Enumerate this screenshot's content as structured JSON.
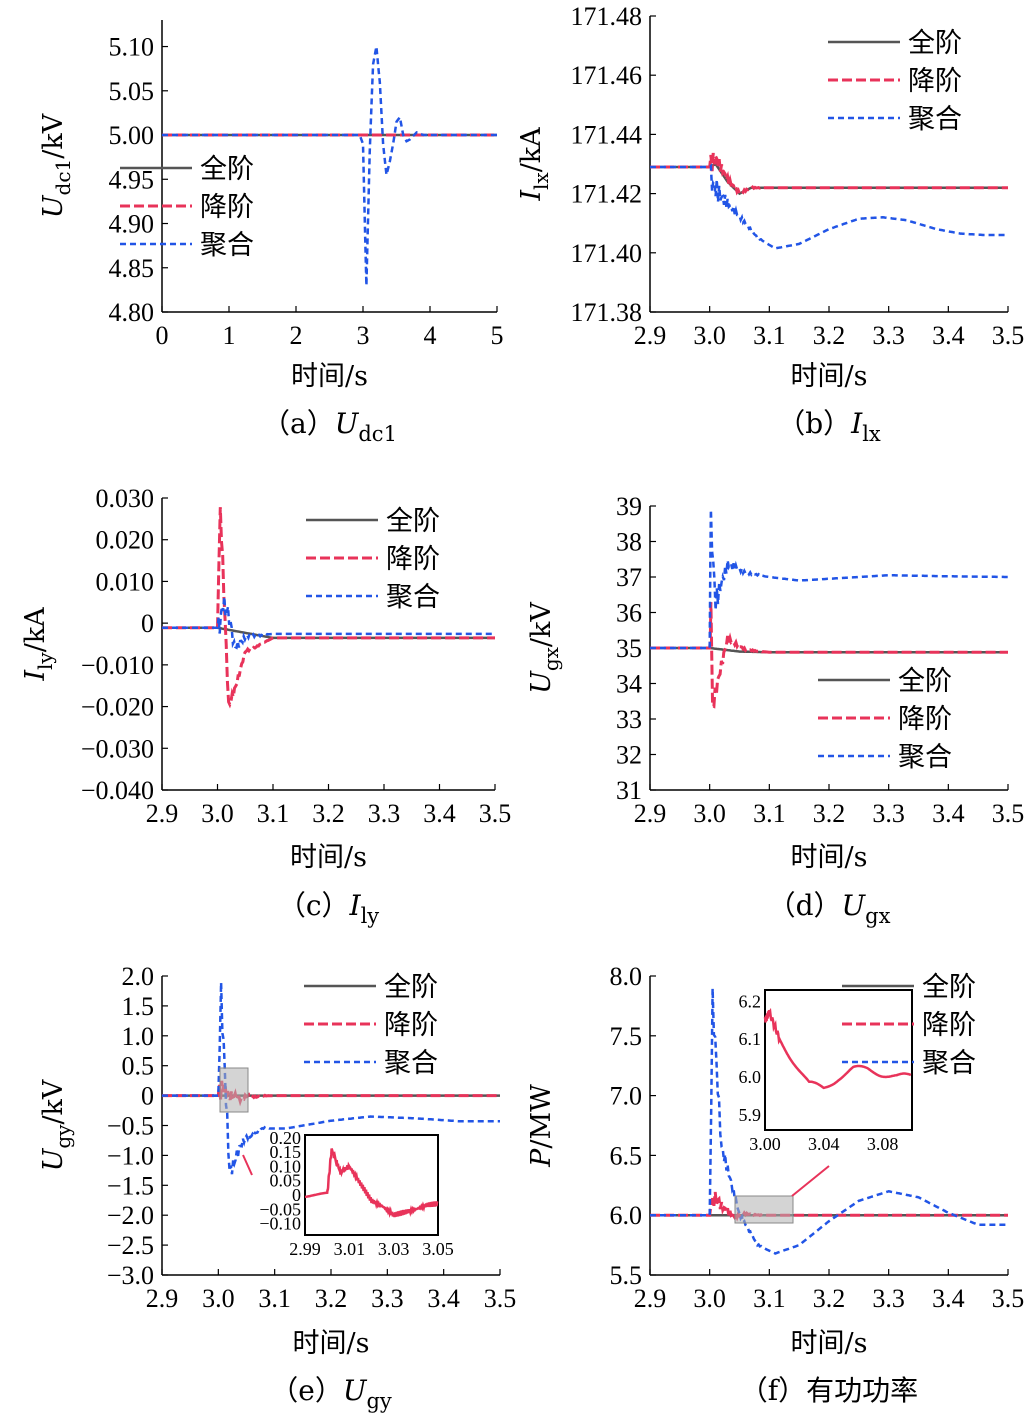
{
  "figure": {
    "colors": {
      "full": "#555555",
      "reduced": "#e8335a",
      "aggregate": "#2255e6"
    }
  },
  "legend_labels": [
    "全阶",
    "降阶",
    "聚合"
  ],
  "chart_data": [
    {
      "id": "a",
      "type": "line",
      "caption": {
        "prefix": "（a）",
        "sym": "U",
        "sub": "dc1"
      },
      "ylabel": {
        "sym": "U",
        "sub": "dc1",
        "unit": "/kV"
      },
      "xlabel": "时间/s",
      "xlim": [
        0,
        5
      ],
      "ylim": [
        4.8,
        5.13
      ],
      "xticks": [
        "0",
        "1",
        "2",
        "3",
        "4",
        "5"
      ],
      "yticks": [
        "4.80",
        "4.85",
        "4.90",
        "4.95",
        "5.00",
        "5.05",
        "5.10"
      ],
      "legend_position": "center-left",
      "series": [
        {
          "name": "全阶",
          "x": [
            0,
            5
          ],
          "y": [
            5.0,
            5.0
          ]
        },
        {
          "name": "降阶",
          "x": [
            0,
            5
          ],
          "y": [
            5.0,
            5.0
          ]
        },
        {
          "name": "聚合",
          "x": [
            0,
            2.95,
            3.0,
            3.05,
            3.1,
            3.15,
            3.2,
            3.25,
            3.3,
            3.35,
            3.4,
            3.45,
            3.5,
            3.55,
            3.6,
            3.65,
            3.7,
            3.8,
            3.9,
            4.0,
            4.2,
            5.0
          ],
          "y": [
            5.0,
            5.0,
            4.99,
            4.83,
            4.98,
            5.08,
            5.1,
            5.06,
            4.99,
            4.955,
            4.97,
            4.99,
            5.015,
            5.02,
            5.0,
            4.993,
            4.995,
            5.003,
            5.0,
            5.0,
            5.0,
            5.0
          ]
        }
      ]
    },
    {
      "id": "b",
      "type": "line",
      "caption": {
        "prefix": "（b）",
        "sym": "I",
        "sub": "lx"
      },
      "ylabel": {
        "sym": "I",
        "sub": "lx",
        "unit": "/kA"
      },
      "xlabel": "时间/s",
      "xlim": [
        2.9,
        3.5
      ],
      "ylim": [
        171.38,
        171.48
      ],
      "xticks": [
        "2.9",
        "3.0",
        "3.1",
        "3.2",
        "3.3",
        "3.4",
        "3.5"
      ],
      "yticks": [
        "171.38",
        "171.40",
        "171.42",
        "171.44",
        "171.46",
        "171.48"
      ],
      "legend_position": "top-right",
      "series": [
        {
          "name": "全阶",
          "x": [
            2.9,
            3.0,
            3.01,
            3.03,
            3.05,
            3.07,
            3.1,
            3.5
          ],
          "y": [
            171.429,
            171.429,
            171.43,
            171.424,
            171.42,
            171.422,
            171.422,
            171.422
          ]
        },
        {
          "name": "降阶",
          "x": [
            2.9,
            3.0,
            3.01,
            3.03,
            3.05,
            3.07,
            3.1,
            3.5
          ],
          "y": [
            171.429,
            171.429,
            171.431,
            171.424,
            171.42,
            171.422,
            171.422,
            171.422
          ]
        },
        {
          "name": "聚合",
          "x": [
            2.9,
            3.0,
            3.02,
            3.05,
            3.08,
            3.11,
            3.15,
            3.2,
            3.25,
            3.29,
            3.33,
            3.38,
            3.42,
            3.46,
            3.5
          ],
          "y": [
            171.429,
            171.429,
            171.42,
            171.412,
            171.405,
            171.4015,
            171.403,
            171.408,
            171.4115,
            171.412,
            171.411,
            171.408,
            171.4065,
            171.406,
            171.406
          ]
        }
      ]
    },
    {
      "id": "c",
      "type": "line",
      "caption": {
        "prefix": "（c）",
        "sym": "I",
        "sub": "ly"
      },
      "ylabel": {
        "sym": "I",
        "sub": "ly",
        "unit": "/kA"
      },
      "xlabel": "时间/s",
      "xlim": [
        2.9,
        3.5
      ],
      "ylim": [
        -0.04,
        0.032
      ],
      "xticks": [
        "2.9",
        "3.0",
        "3.1",
        "3.2",
        "3.3",
        "3.4",
        "3.5"
      ],
      "yticks": [
        "−0.040",
        "−0.030",
        "−0.020",
        "−0.010",
        "0",
        "0.010",
        "0.020",
        "0.030"
      ],
      "legend_position": "top-right",
      "series": [
        {
          "name": "全阶",
          "x": [
            2.9,
            3.0,
            3.1,
            3.2,
            3.5
          ],
          "y": [
            0,
            0,
            -0.0025,
            -0.0025,
            -0.0025
          ]
        },
        {
          "name": "降阶",
          "x": [
            2.9,
            3.0,
            3.005,
            3.02,
            3.05,
            3.1,
            3.5
          ],
          "y": [
            0,
            0,
            0.03,
            -0.02,
            -0.006,
            -0.0025,
            -0.0025
          ]
        },
        {
          "name": "聚合",
          "x": [
            2.9,
            3.0,
            3.01,
            3.03,
            3.06,
            3.1,
            3.5
          ],
          "y": [
            0,
            0,
            0.008,
            -0.004,
            -0.002,
            -0.0015,
            -0.0015
          ]
        }
      ]
    },
    {
      "id": "d",
      "type": "line",
      "caption": {
        "prefix": "（d）",
        "sym": "U",
        "sub": "gx"
      },
      "ylabel": {
        "sym": "U",
        "sub": "gx",
        "unit": "/kV"
      },
      "xlabel": "时间/s",
      "xlim": [
        2.9,
        3.5
      ],
      "ylim": [
        31,
        39
      ],
      "xticks": [
        "2.9",
        "3.0",
        "3.1",
        "3.2",
        "3.3",
        "3.4",
        "3.5"
      ],
      "yticks": [
        "31",
        "32",
        "33",
        "34",
        "35",
        "36",
        "37",
        "38",
        "39"
      ],
      "legend_position": "bottom-right",
      "series": [
        {
          "name": "全阶",
          "x": [
            2.9,
            3.0,
            3.05,
            3.1,
            3.5
          ],
          "y": [
            35.0,
            35.0,
            34.9,
            34.88,
            34.88
          ]
        },
        {
          "name": "降阶",
          "x": [
            2.9,
            3.0,
            3.002,
            3.005,
            3.03,
            3.06,
            3.1,
            3.5
          ],
          "y": [
            35.0,
            35.0,
            36.0,
            33.4,
            35.2,
            34.95,
            34.88,
            34.88
          ]
        },
        {
          "name": "聚合",
          "x": [
            2.9,
            3.0,
            3.002,
            3.01,
            3.03,
            3.06,
            3.1,
            3.15,
            3.2,
            3.3,
            3.4,
            3.5
          ],
          "y": [
            35.0,
            35.0,
            38.8,
            36.5,
            37.4,
            37.1,
            37.0,
            36.9,
            36.95,
            37.05,
            37.02,
            37.0
          ]
        }
      ]
    },
    {
      "id": "e",
      "type": "line",
      "caption": {
        "prefix": "（e）",
        "sym": "U",
        "sub": "gy"
      },
      "ylabel": {
        "sym": "U",
        "sub": "gy",
        "unit": "/kV"
      },
      "xlabel": "时间/s",
      "xlim": [
        2.9,
        3.5
      ],
      "ylim": [
        -3.0,
        2.0
      ],
      "xticks": [
        "2.9",
        "3.0",
        "3.1",
        "3.2",
        "3.3",
        "3.4",
        "3.5"
      ],
      "yticks": [
        "−3.0",
        "−2.5",
        "−2.0",
        "−1.5",
        "−1.0",
        "−0.5",
        "0",
        "0.5",
        "1.0",
        "1.5",
        "2.0"
      ],
      "legend_position": "top-right",
      "series": [
        {
          "name": "全阶",
          "x": [
            2.9,
            3.0,
            3.5
          ],
          "y": [
            0,
            0,
            0
          ]
        },
        {
          "name": "降阶",
          "x": [
            2.9,
            3.0,
            3.01,
            3.03,
            3.05,
            3.1,
            3.5
          ],
          "y": [
            0,
            0,
            0.12,
            -0.05,
            -0.02,
            0,
            0
          ]
        },
        {
          "name": "聚合",
          "x": [
            2.9,
            3.0,
            3.005,
            3.02,
            3.05,
            3.08,
            3.12,
            3.2,
            3.27,
            3.35,
            3.43,
            3.5
          ],
          "y": [
            0,
            0,
            1.5,
            -1.2,
            -0.7,
            -0.55,
            -0.55,
            -0.42,
            -0.35,
            -0.38,
            -0.43,
            -0.43
          ]
        }
      ],
      "inset": {
        "xlim": [
          2.99,
          3.05
        ],
        "ylim": [
          -0.14,
          0.21
        ],
        "xticks": [
          "2.99",
          "3.01",
          "3.03",
          "3.05"
        ],
        "yticks": [
          "−0.10",
          "−0.05",
          "0",
          "0.05",
          "0.10",
          "0.15",
          "0.20"
        ],
        "series_x": [
          2.99,
          3.0,
          3.002,
          3.006,
          3.01,
          3.015,
          3.02,
          3.025,
          3.03,
          3.035,
          3.04,
          3.045,
          3.05
        ],
        "series_y": [
          0,
          0,
          0.16,
          0.08,
          0.1,
          0.04,
          -0.02,
          -0.04,
          -0.07,
          -0.06,
          -0.05,
          -0.035,
          -0.03
        ]
      }
    },
    {
      "id": "f",
      "type": "line",
      "caption": {
        "prefix": "（f）",
        "text": "有功功率"
      },
      "ylabel": {
        "sym": "P",
        "sub": "",
        "unit": "/MW"
      },
      "xlabel": "时间/s",
      "xlim": [
        2.9,
        3.5
      ],
      "ylim": [
        5.5,
        8.0
      ],
      "xticks": [
        "2.9",
        "3.0",
        "3.1",
        "3.2",
        "3.3",
        "3.4",
        "3.5"
      ],
      "yticks": [
        "5.5",
        "6.0",
        "6.5",
        "7.0",
        "7.5",
        "8.0"
      ],
      "legend_position": "top-right",
      "series": [
        {
          "name": "全阶",
          "x": [
            2.9,
            3.0,
            3.5
          ],
          "y": [
            6.0,
            6.0,
            6.0
          ]
        },
        {
          "name": "降阶",
          "x": [
            2.9,
            3.0,
            3.005,
            3.02,
            3.04,
            3.06,
            3.09,
            3.5
          ],
          "y": [
            6.0,
            6.0,
            6.15,
            6.05,
            5.98,
            6.01,
            6.0,
            6.0
          ]
        },
        {
          "name": "聚合",
          "x": [
            2.9,
            3.0,
            3.005,
            3.02,
            3.05,
            3.08,
            3.11,
            3.15,
            3.2,
            3.25,
            3.3,
            3.35,
            3.4,
            3.45,
            3.5
          ],
          "y": [
            6.0,
            6.0,
            7.7,
            6.6,
            6.0,
            5.75,
            5.68,
            5.75,
            5.95,
            6.12,
            6.2,
            6.15,
            6.02,
            5.92,
            5.92
          ]
        }
      ],
      "inset": {
        "xlim": [
          3.0,
          3.1
        ],
        "ylim": [
          5.86,
          6.23
        ],
        "xticks": [
          "3.00",
          "3.04",
          "3.08"
        ],
        "yticks": [
          "5.9",
          "6.0",
          "6.1",
          "6.2"
        ],
        "series_x": [
          3.0,
          3.003,
          3.01,
          3.02,
          3.03,
          3.04,
          3.05,
          3.06,
          3.07,
          3.08,
          3.09,
          3.1
        ],
        "series_y": [
          6.15,
          6.17,
          6.1,
          6.04,
          5.98,
          5.97,
          6.0,
          6.02,
          6.02,
          6.01,
          6.0,
          6.0
        ]
      }
    }
  ]
}
